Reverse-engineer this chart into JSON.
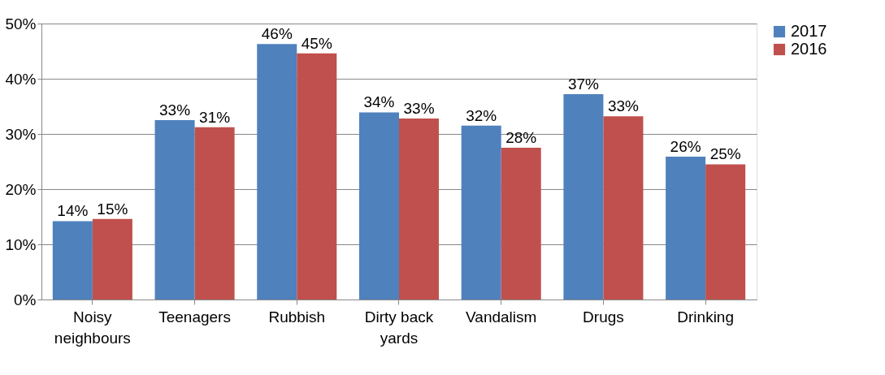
{
  "chart_data": {
    "type": "bar",
    "categories": [
      "Noisy neighbours",
      "Teenagers",
      "Rubbish",
      "Dirty back yards",
      "Vandalism",
      "Drugs",
      "Drinking"
    ],
    "series": [
      {
        "name": "2017",
        "color": "#4f81bd",
        "values": [
          14.2,
          32.5,
          46.3,
          33.9,
          31.5,
          37.2,
          25.9
        ],
        "value_labels": [
          "14%",
          "33%",
          "46%",
          "34%",
          "32%",
          "37%",
          "26%"
        ]
      },
      {
        "name": "2016",
        "color": "#c0504d",
        "values": [
          14.6,
          31.2,
          44.6,
          32.8,
          27.5,
          33.2,
          24.5
        ],
        "value_labels": [
          "15%",
          "31%",
          "45%",
          "33%",
          "28%",
          "33%",
          "25%"
        ]
      }
    ],
    "ylim": [
      0,
      50
    ],
    "yticks": [
      {
        "value": 0,
        "label": "0%"
      },
      {
        "value": 10,
        "label": "10%"
      },
      {
        "value": 20,
        "label": "20%"
      },
      {
        "value": 30,
        "label": "30%"
      },
      {
        "value": 40,
        "label": "40%"
      },
      {
        "value": 50,
        "label": "50%"
      }
    ],
    "grid": "y",
    "legend": "right"
  }
}
